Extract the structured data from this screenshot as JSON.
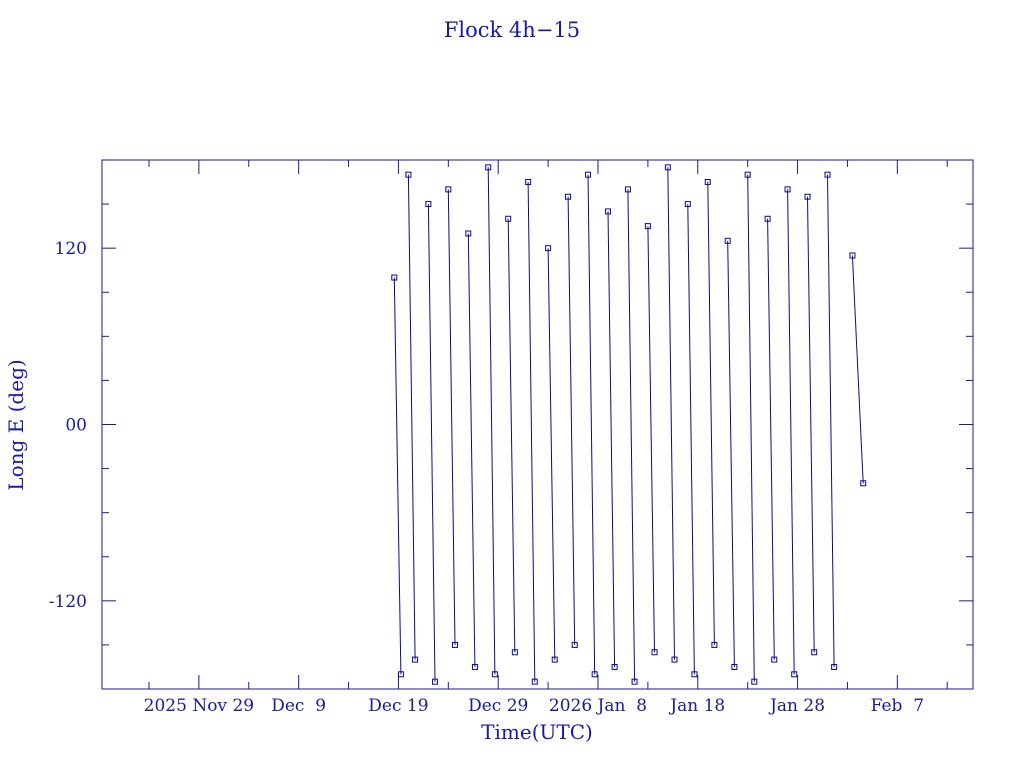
{
  "chart_data": {
    "type": "line",
    "title": "Flock 4h−15",
    "x_label": "Time(UTC)",
    "y_label": "Long E (deg)",
    "x": [
      "2025-12-18 14:00",
      "2025-12-19 06:00",
      "2025-12-19 12:00",
      "2025-12-20 00:00",
      "2025-12-20 16:00",
      "2025-12-21 12:00",
      "2025-12-22 00:00",
      "2025-12-22 16:00",
      "2025-12-23 12:00",
      "2025-12-24 00:00",
      "2025-12-24 16:00",
      "2025-12-25 12:00",
      "2025-12-26 00:00",
      "2025-12-26 16:00",
      "2025-12-27 12:00",
      "2025-12-28 00:00",
      "2025-12-28 16:00",
      "2025-12-29 12:00",
      "2025-12-30 00:00",
      "2025-12-30 16:00",
      "2025-12-31 12:00",
      "2026-01-01 00:00",
      "2026-01-01 16:00",
      "2026-01-02 12:00",
      "2026-01-03 00:00",
      "2026-01-03 16:00",
      "2026-01-04 12:00",
      "2026-01-05 00:00",
      "2026-01-05 16:00",
      "2026-01-06 12:00",
      "2026-01-07 00:00",
      "2026-01-07 16:00",
      "2026-01-08 12:00",
      "2026-01-09 00:00",
      "2026-01-09 16:00",
      "2026-01-10 12:00",
      "2026-01-11 00:00",
      "2026-01-11 16:00",
      "2026-01-12 12:00",
      "2026-01-13 00:00",
      "2026-01-13 16:00",
      "2026-01-14 12:00",
      "2026-01-15 00:00",
      "2026-01-15 16:00",
      "2026-01-16 12:00",
      "2026-01-17 00:00",
      "2026-01-17 16:00",
      "2026-01-18 12:00",
      "2026-01-19 00:00",
      "2026-01-19 16:00",
      "2026-01-20 12:00",
      "2026-01-21 00:00",
      "2026-01-21 16:00",
      "2026-01-22 12:00",
      "2026-01-23 00:00",
      "2026-01-23 16:00",
      "2026-01-24 12:00",
      "2026-01-25 00:00",
      "2026-01-25 16:00",
      "2026-01-26 12:00",
      "2026-01-27 00:00",
      "2026-01-27 16:00",
      "2026-01-28 12:00",
      "2026-01-29 00:00",
      "2026-01-29 16:00",
      "2026-01-30 12:00",
      "2026-01-31 00:00",
      "2026-01-31 16:00",
      "2026-02-01 12:00",
      "2026-02-02 12:00",
      "2026-02-03 14:00"
    ],
    "series": [
      {
        "color": "#0a0a8c",
        "values": [
          100,
          -170,
          null,
          170,
          -160,
          null,
          150,
          -175,
          null,
          160,
          -150,
          null,
          130,
          -165,
          null,
          175,
          -170,
          null,
          140,
          -155,
          null,
          165,
          -175,
          null,
          120,
          -160,
          null,
          155,
          -150,
          null,
          170,
          -170,
          null,
          145,
          -165,
          null,
          160,
          -175,
          null,
          135,
          -155,
          null,
          175,
          -160,
          null,
          150,
          -170,
          null,
          165,
          -150,
          null,
          125,
          -165,
          null,
          170,
          -175,
          null,
          140,
          -160,
          null,
          160,
          -170,
          null,
          155,
          -155,
          null,
          170,
          -165,
          null,
          115,
          -40
        ]
      }
    ],
    "xlim": [
      "2025-11-19 07:00",
      "2026-02-14 14:00"
    ],
    "xticks": [
      {
        "value": "2025-11-29 00:00",
        "label": "2025 Nov 29"
      },
      {
        "value": "2025-12-09 00:00",
        "label": "Dec  9"
      },
      {
        "value": "2025-12-19 00:00",
        "label": "Dec 19"
      },
      {
        "value": "2025-12-29 00:00",
        "label": "Dec 29"
      },
      {
        "value": "2026-01-08 00:00",
        "label": "2026 Jan  8"
      },
      {
        "value": "2026-01-18 00:00",
        "label": "Jan 18"
      },
      {
        "value": "2026-01-28 00:00",
        "label": "Jan 28"
      },
      {
        "value": "2026-02-07 00:00",
        "label": "Feb  7"
      }
    ],
    "xminorticks": [
      "2025-11-24 00:00",
      "2025-12-04 00:00",
      "2025-12-14 00:00",
      "2025-12-24 00:00",
      "2026-01-03 00:00",
      "2026-01-13 00:00",
      "2026-01-23 00:00",
      "2026-02-02 00:00",
      "2026-02-12 00:00"
    ],
    "ylim": [
      -180,
      180
    ],
    "yticks": [
      -120,
      {
        "value": 0,
        "label": "00"
      },
      120
    ],
    "yminorticks": [
      -150,
      -90,
      -60,
      -30,
      30,
      60,
      90,
      150
    ]
  }
}
